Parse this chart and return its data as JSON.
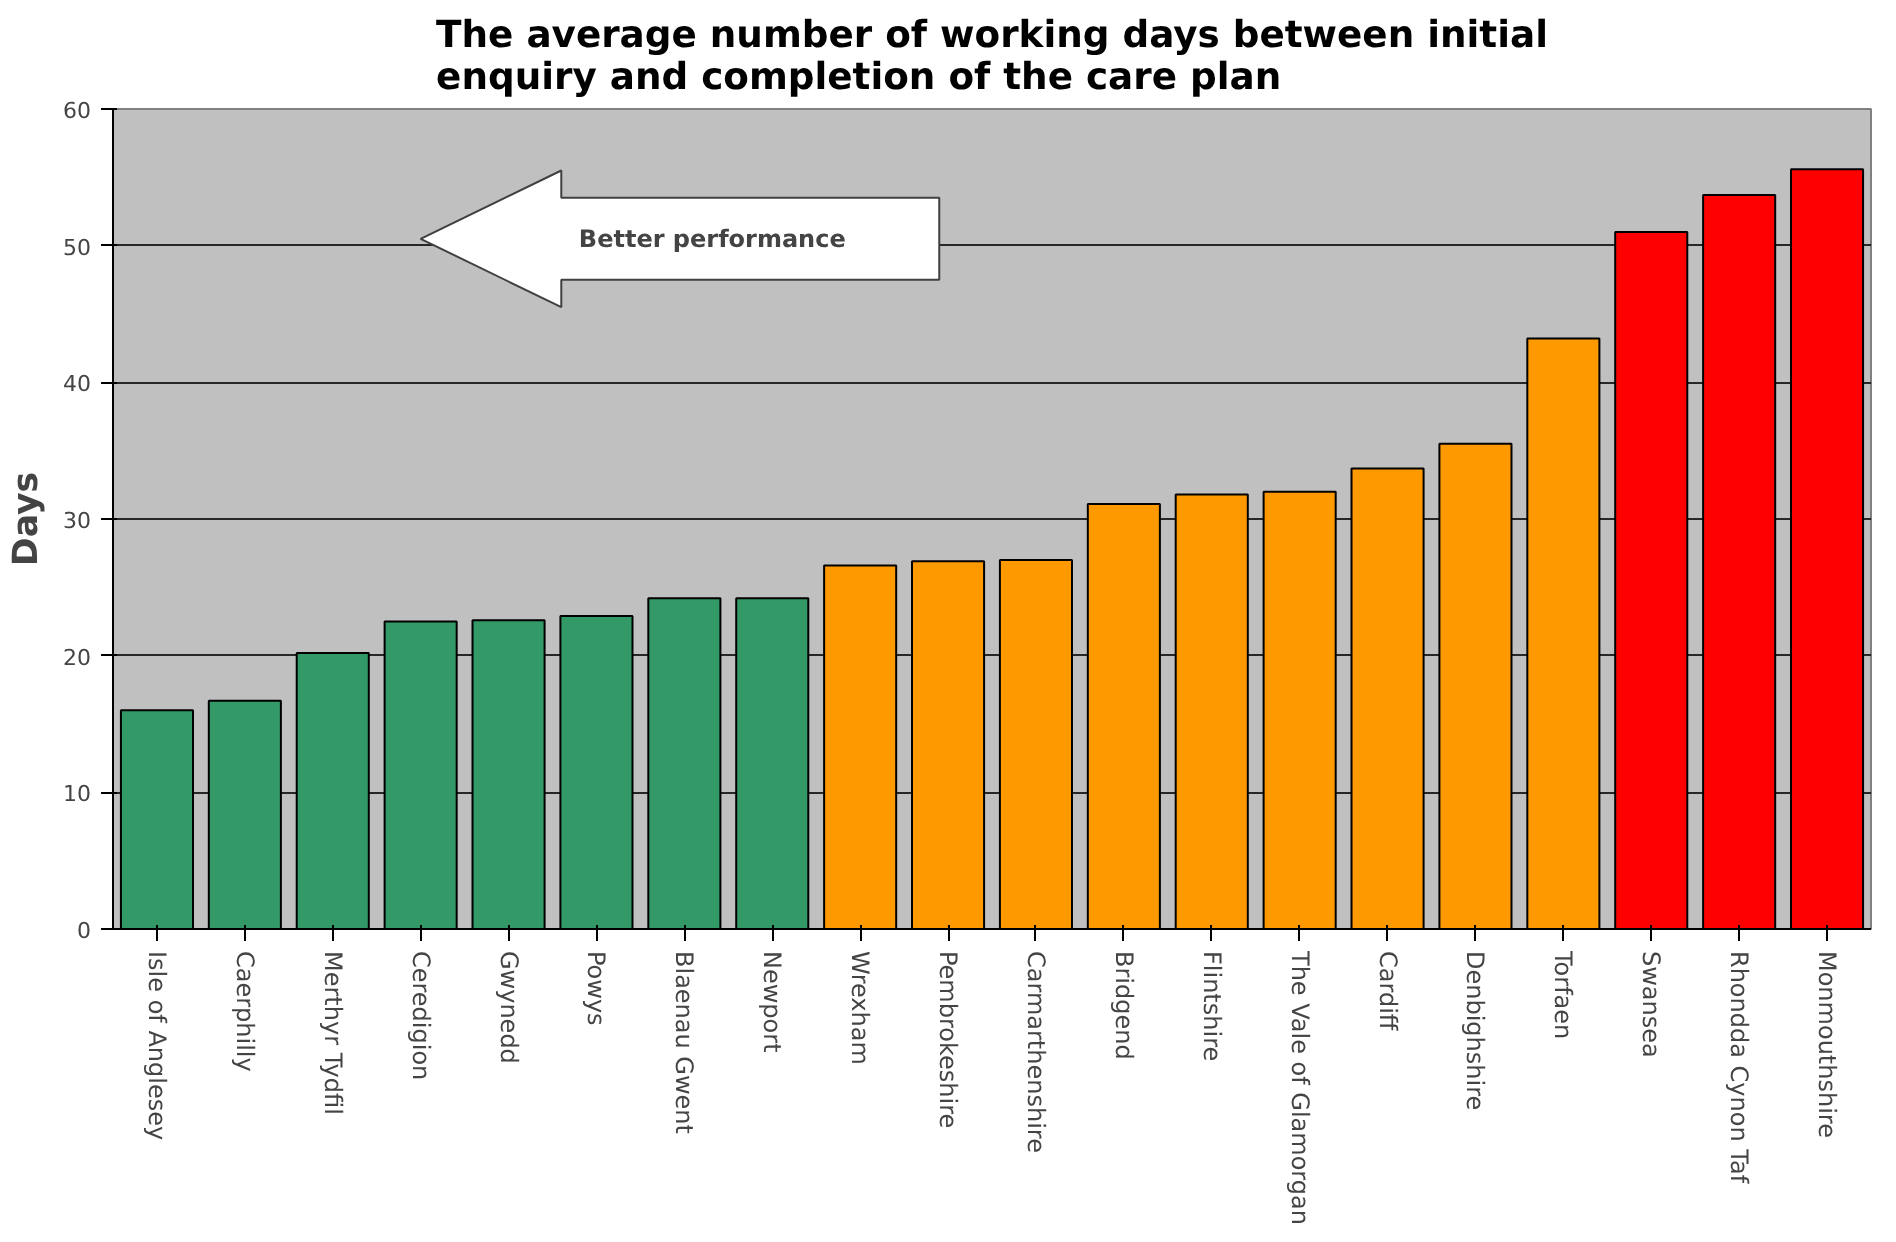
{
  "chart_data": {
    "type": "bar",
    "title": "The average number of working days between initial enquiry and completion of the care plan",
    "ylabel": "Days",
    "categories": [
      "Isle of Anglesey",
      "Caerphilly",
      "Merthyr Tydfil",
      "Ceredigion",
      "Gwynedd",
      "Powys",
      "Blaenau Gwent",
      "Newport",
      "Wrexham",
      "Pembrokeshire",
      "Carmarthenshire",
      "Bridgend",
      "Flintshire",
      "The Vale of Glamorgan",
      "Cardiff",
      "Denbighshire",
      "Torfaen",
      "Swansea",
      "Rhondda Cynon Taf",
      "Monmouthshire"
    ],
    "values": [
      16.0,
      16.7,
      20.2,
      22.5,
      22.6,
      22.9,
      24.2,
      24.2,
      26.6,
      26.9,
      27.0,
      31.1,
      31.8,
      32.0,
      33.7,
      35.5,
      43.2,
      51.0,
      53.7,
      55.6
    ],
    "colors": [
      "#339966",
      "#339966",
      "#339966",
      "#339966",
      "#339966",
      "#339966",
      "#339966",
      "#339966",
      "#ff9900",
      "#ff9900",
      "#ff9900",
      "#ff9900",
      "#ff9900",
      "#ff9900",
      "#ff9900",
      "#ff9900",
      "#ff9900",
      "#ff0000",
      "#ff0000",
      "#ff0000"
    ],
    "ylim": [
      0,
      60
    ],
    "yticks": [
      0,
      10,
      20,
      30,
      40,
      50,
      60
    ],
    "grid": "y",
    "annotations": [
      "Better performance"
    ]
  }
}
